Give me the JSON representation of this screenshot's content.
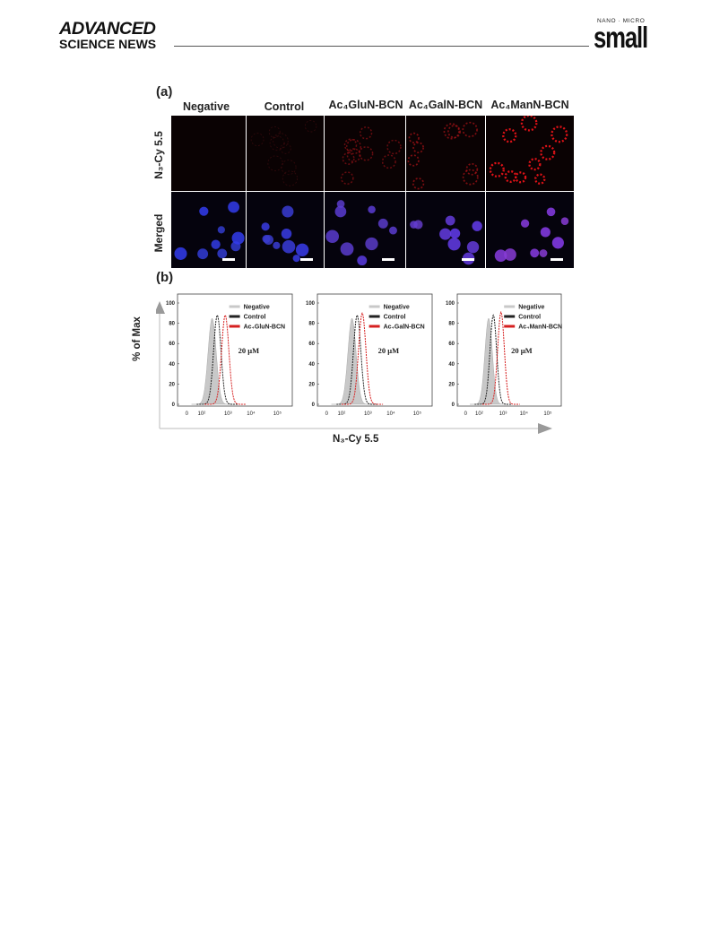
{
  "header": {
    "journal_left_line1": "ADVANCED",
    "journal_left_line2": "SCIENCE NEWS",
    "journal_right_top": "NANO · MICRO",
    "journal_right_main": "small"
  },
  "figure": {
    "panel_a": {
      "letter": "(a)",
      "columns": [
        "Negative",
        "Control",
        "Ac₄GluN-BCN",
        "Ac₄GalN-BCN",
        "Ac₄ManN-BCN"
      ],
      "rows": [
        "N₃-Cy 5.5",
        "Merged"
      ]
    },
    "panel_b": {
      "letter": "(b)",
      "y_label": "% of Max",
      "x_label": "N₃-Cy 5.5",
      "concentration_label": "20 μM",
      "legend": [
        "Negative",
        "Control"
      ],
      "third_legend": [
        "Ac₄GluN-BCN",
        "Ac₄GalN-BCN",
        "Ac₄ManN-BCN"
      ],
      "y_ticks": [
        "0",
        "20",
        "40",
        "60",
        "80",
        "100"
      ],
      "x_ticks": [
        "0",
        "10²",
        "10³",
        "10⁴",
        "10⁵"
      ],
      "colors": {
        "negative": "#c8c8c8",
        "control": "#222222",
        "treated": "#d62020"
      }
    }
  },
  "chart_data": [
    {
      "type": "area",
      "title": "",
      "xlabel": "N₃-Cy 5.5",
      "ylabel": "% of Max",
      "ylim": [
        0,
        100
      ],
      "x_scale": "log",
      "annotation": "20 μM",
      "series": [
        {
          "name": "Negative",
          "peak_x": 30,
          "peak_y": 85
        },
        {
          "name": "Control",
          "peak_x": 55,
          "peak_y": 88
        },
        {
          "name": "Ac₄GluN-BCN",
          "peak_x": 140,
          "peak_y": 88
        }
      ]
    },
    {
      "type": "area",
      "title": "",
      "xlabel": "N₃-Cy 5.5",
      "ylabel": "% of Max",
      "ylim": [
        0,
        100
      ],
      "x_scale": "log",
      "annotation": "20 μM",
      "series": [
        {
          "name": "Negative",
          "peak_x": 30,
          "peak_y": 85
        },
        {
          "name": "Control",
          "peak_x": 55,
          "peak_y": 88
        },
        {
          "name": "Ac₄GalN-BCN",
          "peak_x": 100,
          "peak_y": 90
        }
      ]
    },
    {
      "type": "area",
      "title": "",
      "xlabel": "N₃-Cy 5.5",
      "ylabel": "% of Max",
      "ylim": [
        0,
        100
      ],
      "x_scale": "log",
      "annotation": "20 μM",
      "series": [
        {
          "name": "Negative",
          "peak_x": 30,
          "peak_y": 85
        },
        {
          "name": "Control",
          "peak_x": 55,
          "peak_y": 88
        },
        {
          "name": "Ac₄ManN-BCN",
          "peak_x": 150,
          "peak_y": 91
        }
      ]
    }
  ]
}
